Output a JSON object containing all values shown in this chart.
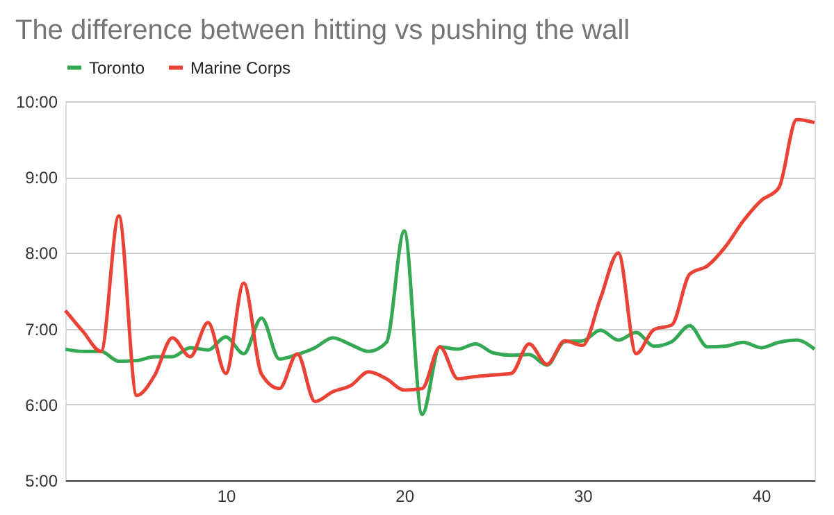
{
  "chart_data": {
    "type": "line",
    "title": "The difference between hitting vs pushing the wall",
    "x": [
      1,
      2,
      3,
      4,
      5,
      6,
      7,
      8,
      9,
      10,
      11,
      12,
      13,
      14,
      15,
      16,
      17,
      18,
      19,
      20,
      21,
      22,
      23,
      24,
      25,
      26,
      27,
      28,
      29,
      30,
      31,
      32,
      33,
      34,
      35,
      36,
      37,
      38,
      39,
      40,
      41,
      42,
      43
    ],
    "series": [
      {
        "name": "Toronto",
        "color": "#34a853",
        "values": [
          6.73,
          6.7,
          6.7,
          6.57,
          6.58,
          6.63,
          6.63,
          6.75,
          6.72,
          6.89,
          6.67,
          7.14,
          6.6,
          6.66,
          6.75,
          6.88,
          6.79,
          6.7,
          6.82,
          8.29,
          5.87,
          6.76,
          6.73,
          6.8,
          6.68,
          6.65,
          6.66,
          6.52,
          6.83,
          6.84,
          6.98,
          6.85,
          6.95,
          6.77,
          6.83,
          7.04,
          6.76,
          6.77,
          6.82,
          6.75,
          6.82,
          6.85,
          6.73
        ]
      },
      {
        "name": "Marine Corps",
        "color": "#ea4335",
        "values": [
          7.24,
          6.96,
          6.7,
          8.49,
          6.12,
          6.38,
          6.88,
          6.63,
          7.08,
          6.41,
          7.6,
          6.4,
          6.21,
          6.67,
          6.04,
          6.17,
          6.25,
          6.43,
          6.34,
          6.19,
          6.21,
          6.76,
          6.34,
          6.37,
          6.39,
          6.41,
          6.8,
          6.53,
          6.84,
          6.78,
          7.4,
          8.0,
          6.67,
          6.99,
          7.05,
          7.72,
          7.83,
          8.08,
          8.42,
          8.69,
          8.86,
          9.76,
          9.72
        ]
      }
    ],
    "xlim": [
      1,
      43
    ],
    "xticks": [
      10,
      20,
      30,
      40
    ],
    "ylim": [
      5,
      10
    ],
    "yticks": [
      {
        "value": 5,
        "label": "5:00"
      },
      {
        "value": 6,
        "label": "6:00"
      },
      {
        "value": 7,
        "label": "7:00"
      },
      {
        "value": 8,
        "label": "8:00"
      },
      {
        "value": 9,
        "label": "9:00"
      },
      {
        "value": 10,
        "label": "10:00"
      }
    ],
    "grid": "y",
    "legend": "top"
  }
}
